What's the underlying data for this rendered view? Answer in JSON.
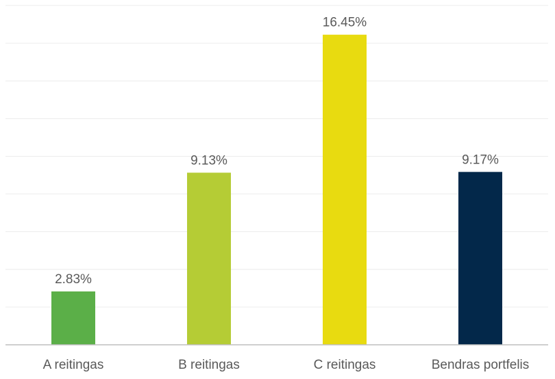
{
  "chart_data": {
    "type": "bar",
    "title": "",
    "xlabel": "",
    "ylabel": "",
    "categories": [
      "A reitingas",
      "B reitingas",
      "C reitingas",
      "Bendras portfelis"
    ],
    "values": [
      2.83,
      9.13,
      16.45,
      9.17
    ],
    "value_labels": [
      "2.83%",
      "9.13%",
      "16.45%",
      "9.17%"
    ],
    "colors": [
      "#5BAF48",
      "#B5CC35",
      "#E8DB10",
      "#03284A"
    ],
    "ylim": [
      0,
      18
    ],
    "grid": true,
    "legend": "none"
  }
}
